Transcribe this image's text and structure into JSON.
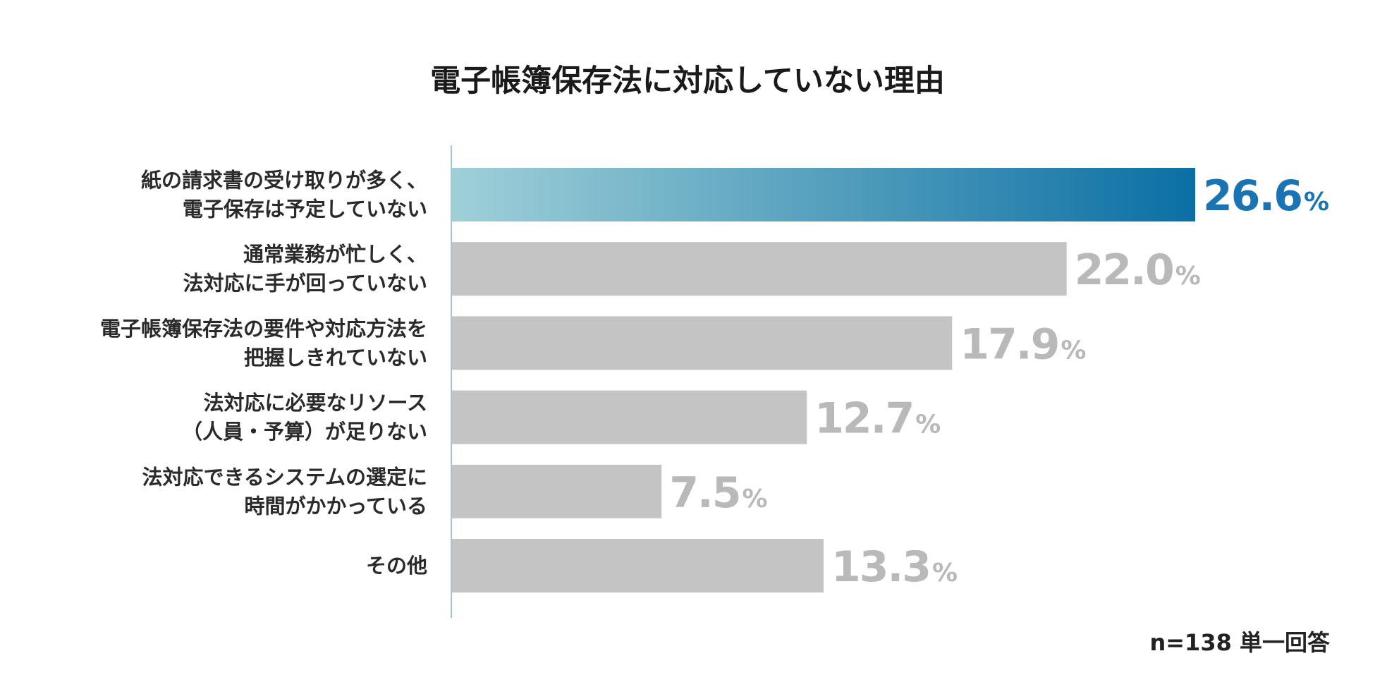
{
  "chart_data": {
    "type": "bar",
    "orientation": "horizontal",
    "title": "電子帳簿保存法に対応していない理由",
    "categories": [
      [
        "紙の請求書の受け取りが多く、",
        "電子保存は予定していない"
      ],
      [
        "通常業務が忙しく、",
        "法対応に手が回っていない"
      ],
      [
        "電子帳簿保存法の要件や対応方法を",
        "把握しきれていない"
      ],
      [
        "法対応に必要なリソース",
        "（人員・予算）が足りない"
      ],
      [
        "法対応できるシステムの選定に",
        "時間がかかっている"
      ],
      [
        "その他"
      ]
    ],
    "values": [
      26.6,
      22.0,
      17.9,
      12.7,
      7.5,
      13.3
    ],
    "value_labels": [
      "26.6",
      "22.0",
      "17.9",
      "12.7",
      "7.5",
      "13.3"
    ],
    "unit": "%",
    "highlight_index": 0,
    "colors": {
      "highlight_start": "#9fd0d8",
      "highlight_end": "#0b6fa4",
      "highlight_text": "#1a73b3",
      "bar": "#c4c4c4",
      "value_text": "#b9b9b9",
      "axis": "#9ec8d4"
    },
    "xlim": [
      0,
      26.6
    ],
    "grid": false,
    "legend": "none",
    "note": "n=138 単一回答"
  }
}
